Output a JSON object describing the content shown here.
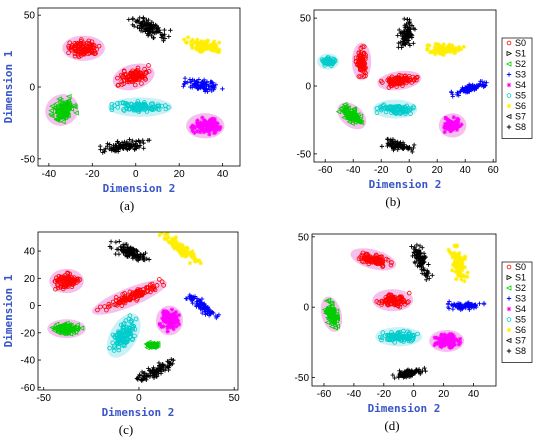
{
  "series_styles": [
    {
      "name": "S0",
      "color": "#ff0000",
      "marker": "circle"
    },
    {
      "name": "S1",
      "color": "#000000",
      "marker": "triangle-right"
    },
    {
      "name": "S2",
      "color": "#00cc00",
      "marker": "triangle-left"
    },
    {
      "name": "S3",
      "color": "#0000ff",
      "marker": "plus"
    },
    {
      "name": "S4",
      "color": "#ff00ff",
      "marker": "star"
    },
    {
      "name": "S5",
      "color": "#00cccc",
      "marker": "circle"
    },
    {
      "name": "S6",
      "color": "#ffee00",
      "marker": "star"
    },
    {
      "name": "S7",
      "color": "#000000",
      "marker": "triangle-left"
    },
    {
      "name": "S8",
      "color": "#000000",
      "marker": "plus"
    }
  ],
  "halo_colors": {
    "magenta": "#f4b8ec",
    "cyan": "#c4f0f4"
  },
  "chart_data": [
    {
      "type": "scatter",
      "panel_label": "(a)",
      "xlabel": "Dimension 2",
      "ylabel": "Dimension 1",
      "xlim": [
        -45,
        48
      ],
      "ylim": [
        -55,
        55
      ],
      "xticks": [
        -40,
        -20,
        0,
        20,
        40
      ],
      "yticks": [
        -50,
        0,
        50
      ],
      "legend": false,
      "clusters": [
        {
          "series": "S0",
          "color": "#ff0000",
          "cx": -24,
          "cy": 27,
          "rx": 8,
          "ry": 6,
          "angle": 0,
          "halo": "magenta"
        },
        {
          "series": "S0",
          "color": "#ff0000",
          "cx": -1,
          "cy": 7,
          "rx": 8,
          "ry": 6,
          "angle": 15,
          "halo": "magenta"
        },
        {
          "series": "S8",
          "color": "#000000",
          "cx": 6,
          "cy": 41,
          "rx": 10,
          "ry": 5,
          "angle": -25,
          "halo": "none"
        },
        {
          "series": "S6",
          "color": "#ffee00",
          "cx": 32,
          "cy": 29,
          "rx": 10,
          "ry": 5,
          "angle": -8,
          "halo": "none"
        },
        {
          "series": "S3",
          "color": "#0000ff",
          "cx": 31,
          "cy": 1,
          "rx": 9,
          "ry": 4,
          "angle": -5,
          "halo": "none"
        },
        {
          "series": "S2",
          "color": "#00cc00",
          "cx": -34,
          "cy": -16,
          "rx": 6,
          "ry": 8,
          "angle": 30,
          "halo": "magenta"
        },
        {
          "series": "S5",
          "color": "#00cccc",
          "cx": 2,
          "cy": -14,
          "rx": 13,
          "ry": 4,
          "angle": 0,
          "halo": "cyan"
        },
        {
          "series": "S4",
          "color": "#ff00ff",
          "cx": 32,
          "cy": -27,
          "rx": 7,
          "ry": 6,
          "angle": 0,
          "halo": "magenta"
        },
        {
          "series": "S8",
          "color": "#000000",
          "cx": -5,
          "cy": -41,
          "rx": 12,
          "ry": 4,
          "angle": 8,
          "halo": "none"
        }
      ]
    },
    {
      "type": "scatter",
      "panel_label": "(b)",
      "xlabel": "Dimension 2",
      "ylabel": "",
      "xlim": [
        -68,
        62
      ],
      "ylim": [
        -56,
        56
      ],
      "xticks": [
        -60,
        -40,
        -20,
        0,
        20,
        40,
        60
      ],
      "yticks": [
        -50,
        0,
        50
      ],
      "legend": true,
      "clusters": [
        {
          "series": "S8",
          "color": "#000000",
          "cx": -2,
          "cy": 38,
          "rx": 6,
          "ry": 11,
          "angle": -10,
          "halo": "none"
        },
        {
          "series": "S6",
          "color": "#ffee00",
          "cx": 26,
          "cy": 27,
          "rx": 13,
          "ry": 4,
          "angle": 0,
          "halo": "none"
        },
        {
          "series": "S5",
          "color": "#00cccc",
          "cx": -58,
          "cy": 18,
          "rx": 5,
          "ry": 3,
          "angle": 0,
          "halo": "cyan"
        },
        {
          "series": "S0",
          "color": "#ff0000",
          "cx": -34,
          "cy": 18,
          "rx": 4,
          "ry": 11,
          "angle": 0,
          "halo": "magenta"
        },
        {
          "series": "S0",
          "color": "#ff0000",
          "cx": -7,
          "cy": 4,
          "rx": 13,
          "ry": 4,
          "angle": 8,
          "halo": "magenta"
        },
        {
          "series": "S3",
          "color": "#0000ff",
          "cx": 43,
          "cy": -2,
          "rx": 13,
          "ry": 3,
          "angle": 18,
          "halo": "none"
        },
        {
          "series": "S5",
          "color": "#00cccc",
          "cx": -10,
          "cy": -17,
          "rx": 13,
          "ry": 4,
          "angle": 0,
          "halo": "cyan"
        },
        {
          "series": "S2",
          "color": "#00cc00",
          "cx": -41,
          "cy": -22,
          "rx": 9,
          "ry": 5,
          "angle": -40,
          "halo": "magenta"
        },
        {
          "series": "S4",
          "color": "#ff00ff",
          "cx": 31,
          "cy": -29,
          "rx": 7,
          "ry": 6,
          "angle": 0,
          "halo": "magenta"
        },
        {
          "series": "S8",
          "color": "#000000",
          "cx": -8,
          "cy": -44,
          "rx": 11,
          "ry": 4,
          "angle": -15,
          "halo": "none"
        }
      ]
    },
    {
      "type": "scatter",
      "panel_label": "(c)",
      "xlabel": "Dimension 2",
      "ylabel": "Dimension 1",
      "xlim": [
        -53,
        52
      ],
      "ylim": [
        -62,
        54
      ],
      "xticks": [
        -50,
        0,
        50
      ],
      "yticks": [
        -60,
        -40,
        -20,
        0,
        20,
        40
      ],
      "legend": false,
      "clusters": [
        {
          "series": "S8",
          "color": "#000000",
          "cx": -5,
          "cy": 39,
          "rx": 11,
          "ry": 5,
          "angle": -20,
          "halo": "none"
        },
        {
          "series": "S6",
          "color": "#ffee00",
          "cx": 22,
          "cy": 42,
          "rx": 13,
          "ry": 4,
          "angle": -40,
          "halo": "none"
        },
        {
          "series": "S0",
          "color": "#ff0000",
          "cx": -38,
          "cy": 18,
          "rx": 7,
          "ry": 6,
          "angle": 0,
          "halo": "magenta"
        },
        {
          "series": "S0",
          "color": "#ff0000",
          "cx": -5,
          "cy": 6,
          "rx": 19,
          "ry": 4,
          "angle": 22,
          "halo": "magenta"
        },
        {
          "series": "S3",
          "color": "#0000ff",
          "cx": 33,
          "cy": 0,
          "rx": 10,
          "ry": 4,
          "angle": -40,
          "halo": "none"
        },
        {
          "series": "S2",
          "color": "#00cc00",
          "cx": -38,
          "cy": -17,
          "rx": 8,
          "ry": 4,
          "angle": 0,
          "halo": "magenta"
        },
        {
          "series": "S4",
          "color": "#ff00ff",
          "cx": 16,
          "cy": -11,
          "rx": 5,
          "ry": 8,
          "angle": 0,
          "halo": "magenta"
        },
        {
          "series": "S5",
          "color": "#00cccc",
          "cx": -8,
          "cy": -22,
          "rx": 5,
          "ry": 15,
          "angle": -30,
          "halo": "cyan"
        },
        {
          "series": "S2",
          "color": "#00cc00",
          "cx": 7,
          "cy": -29,
          "rx": 3,
          "ry": 2,
          "angle": 0,
          "halo": "none"
        },
        {
          "series": "S8",
          "color": "#000000",
          "cx": 10,
          "cy": -47,
          "rx": 14,
          "ry": 4,
          "angle": 28,
          "halo": "none"
        }
      ]
    },
    {
      "type": "scatter",
      "panel_label": "(d)",
      "xlabel": "Dimension 2",
      "ylabel": "",
      "xlim": [
        -68,
        55
      ],
      "ylim": [
        -56,
        52
      ],
      "xticks": [
        -60,
        -40,
        -20,
        0,
        20,
        40
      ],
      "yticks": [
        -50,
        0,
        50
      ],
      "legend": true,
      "clusters": [
        {
          "series": "S0",
          "color": "#ff0000",
          "cx": -27,
          "cy": 34,
          "rx": 13,
          "ry": 4,
          "angle": -15,
          "halo": "magenta"
        },
        {
          "series": "S8",
          "color": "#000000",
          "cx": 5,
          "cy": 32,
          "rx": 4,
          "ry": 13,
          "angle": 20,
          "halo": "none"
        },
        {
          "series": "S6",
          "color": "#ffee00",
          "cx": 30,
          "cy": 31,
          "rx": 5,
          "ry": 13,
          "angle": 10,
          "halo": "none"
        },
        {
          "series": "S0",
          "color": "#ff0000",
          "cx": -14,
          "cy": 5,
          "rx": 11,
          "ry": 5,
          "angle": 0,
          "halo": "magenta"
        },
        {
          "series": "S3",
          "color": "#0000ff",
          "cx": 35,
          "cy": 1,
          "rx": 12,
          "ry": 3,
          "angle": 0,
          "halo": "none"
        },
        {
          "series": "S2",
          "color": "#00cc00",
          "cx": -55,
          "cy": -5,
          "rx": 4,
          "ry": 10,
          "angle": 15,
          "halo": "magenta"
        },
        {
          "series": "S5",
          "color": "#00cccc",
          "cx": -10,
          "cy": -21,
          "rx": 13,
          "ry": 4,
          "angle": 0,
          "halo": "cyan"
        },
        {
          "series": "S4",
          "color": "#ff00ff",
          "cx": 22,
          "cy": -24,
          "rx": 9,
          "ry": 5,
          "angle": 0,
          "halo": "magenta"
        },
        {
          "series": "S8",
          "color": "#000000",
          "cx": -3,
          "cy": -47,
          "rx": 11,
          "ry": 3,
          "angle": 10,
          "halo": "none"
        }
      ]
    }
  ]
}
